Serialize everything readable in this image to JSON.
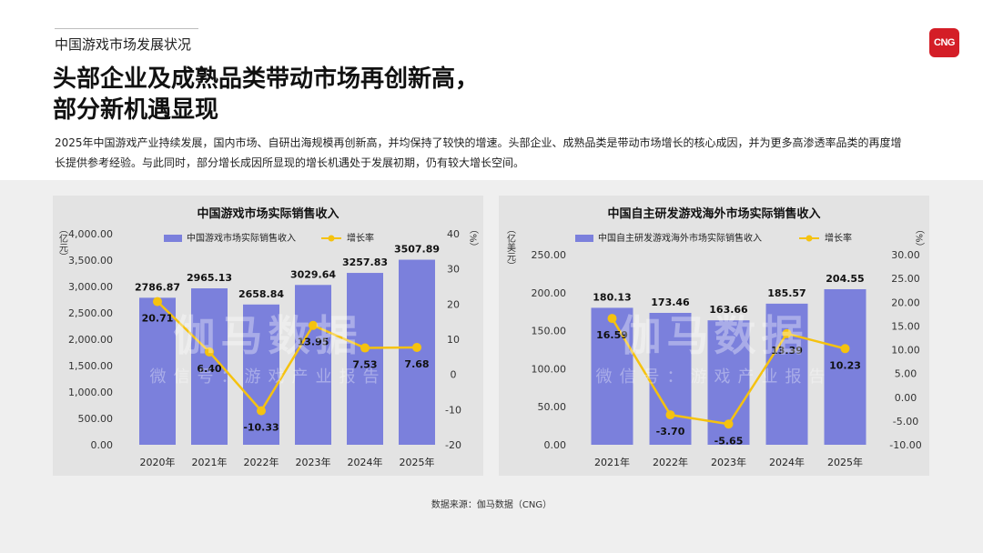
{
  "header": {
    "section_label": "中国游戏市场发展状况",
    "logo_text": "CNG",
    "headline_line1": "头部企业及成熟品类带动市场再创新高，",
    "headline_line2": "部分新机遇显现",
    "intro_line1": "2025年中国游戏产业持续发展，国内市场、自研出海规模再创新高，并均保持了较快的增速。头部企业、成熟品类是带动市场增长的核心成因，并为更多高渗透率品类的再度增",
    "intro_line2": "长提供参考经验。与此同时，部分增长成因所显现的增长机遇处于发展初期，仍有较大增长空间。"
  },
  "watermark": {
    "main": "伽马数据",
    "sub": "微信号：游戏产业报告"
  },
  "footer": {
    "source": "数据来源：伽马数据（CNG）"
  },
  "colors": {
    "bar": "#7b80dc",
    "line": "#f5c20f",
    "panel": "#e3e3e3",
    "band": "#efefef"
  },
  "chart_data": [
    {
      "type": "bar",
      "title": "中国游戏市场实际销售收入",
      "categories": [
        "2020年",
        "2021年",
        "2022年",
        "2023年",
        "2024年",
        "2025年"
      ],
      "series": [
        {
          "name": "中国游戏市场实际销售收入",
          "type": "bar",
          "axis": "left",
          "values": [
            2786.87,
            2965.13,
            2658.84,
            3029.64,
            3257.83,
            3507.89
          ]
        },
        {
          "name": "增长率",
          "type": "line",
          "axis": "right",
          "values": [
            20.71,
            6.4,
            -10.33,
            13.95,
            7.53,
            7.68
          ]
        }
      ],
      "value_labels": [
        "2786.87",
        "2965.13",
        "2658.84",
        "3029.64",
        "3257.83",
        "3507.89"
      ],
      "rate_labels": [
        "20.71",
        "6.40",
        "-10.33",
        "13.95",
        "7.53",
        "7.68"
      ],
      "ylabel": "（亿元）",
      "y2label": "（%）",
      "ylim": [
        0,
        4000
      ],
      "y2lim": [
        -20,
        40
      ],
      "yticks": [
        "0.00",
        "500.00",
        "1,000.00",
        "1,500.00",
        "2,000.00",
        "2,500.00",
        "3,000.00",
        "3,500.00",
        "4,000.00"
      ],
      "y2ticks": [
        "-20",
        "-10",
        "0",
        "10",
        "20",
        "30",
        "40"
      ],
      "legend": "top",
      "grid": false
    },
    {
      "type": "bar",
      "title": "中国自主研发游戏海外市场实际销售收入",
      "categories": [
        "2021年",
        "2022年",
        "2023年",
        "2024年",
        "2025年"
      ],
      "series": [
        {
          "name": "中国自主研发游戏海外市场实际销售收入",
          "type": "bar",
          "axis": "left",
          "values": [
            180.13,
            173.46,
            163.66,
            185.57,
            204.55
          ]
        },
        {
          "name": "增长率",
          "type": "line",
          "axis": "right",
          "values": [
            16.59,
            -3.7,
            -5.65,
            13.39,
            10.23
          ]
        }
      ],
      "value_labels": [
        "180.13",
        "173.46",
        "163.66",
        "185.57",
        "204.55"
      ],
      "rate_labels": [
        "16.59",
        "-3.70",
        "-5.65",
        "13.39",
        "10.23"
      ],
      "ylabel": "（亿美元）",
      "y2label": "（%）",
      "ylim": [
        0,
        250
      ],
      "y2lim": [
        -10,
        30
      ],
      "yticks": [
        "0.00",
        "50.00",
        "100.00",
        "150.00",
        "200.00",
        "250.00"
      ],
      "y2ticks": [
        "-10.00",
        "-5.00",
        "0.00",
        "5.00",
        "10.00",
        "15.00",
        "20.00",
        "25.00",
        "30.00"
      ],
      "legend": "top",
      "grid": false
    }
  ]
}
